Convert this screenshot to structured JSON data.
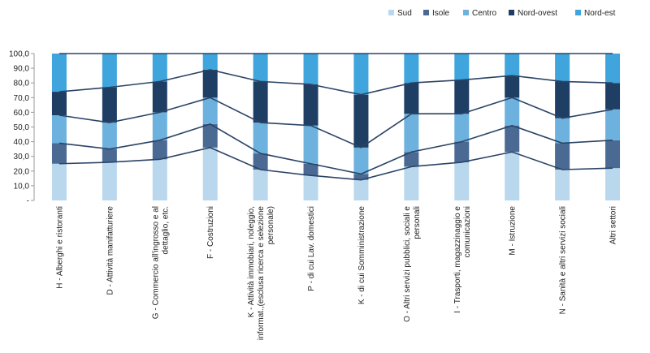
{
  "chart_data": {
    "type": "bar",
    "stacked": true,
    "percent": true,
    "categories": [
      "H - Alberghi e ristoranti",
      "D - Attività  manifatturiere",
      "G - Commercio all'ingrosso e al dettaglio, etc.",
      "F - Costruzioni",
      "K - Attività  immobiari, noleggio, informat.,(esclusa ricerca e selezione personale)",
      "P - di cui Lav. domestici",
      "K - di cui Somministrazione",
      "O - Altri servizi pubblici, sociali e personali",
      "I - Trasporti, magazzinaggio e comunicazioni",
      "M - Istruzione",
      "N - Sanità e altri servizi sociali",
      "Altri settori"
    ],
    "category_lines": [
      [
        "H - Alberghi e ristoranti"
      ],
      [
        "D - Attività  manifatturiere"
      ],
      [
        "G - Commercio all'ingrosso e al",
        "dettaglio, etc."
      ],
      [
        "F - Costruzioni"
      ],
      [
        "K - Attività  immobiari, noleggio,",
        "informat.,(esclusa ricerca e selezione",
        "personale)"
      ],
      [
        "P - di cui Lav. domestici"
      ],
      [
        "K - di cui Somministrazione"
      ],
      [
        "O - Altri servizi pubblici, sociali e",
        "personali"
      ],
      [
        "I - Trasporti, magazzinaggio e",
        "comunicazioni"
      ],
      [
        "M - Istruzione"
      ],
      [
        "N - Sanità  e altri servizi sociali"
      ],
      [
        "Altri settori"
      ]
    ],
    "series": [
      {
        "name": "Sud",
        "color": "#b9d8ee",
        "values": [
          25,
          26,
          28,
          36,
          21,
          17,
          14,
          23,
          26,
          33,
          21,
          22
        ]
      },
      {
        "name": "Isole",
        "color": "#4a6a93",
        "values": [
          14,
          9,
          13,
          16,
          11,
          8,
          4,
          10,
          14,
          18,
          18,
          19
        ]
      },
      {
        "name": "Centro",
        "color": "#6db2de",
        "values": [
          19,
          18,
          19,
          18,
          21,
          26,
          18,
          26,
          19,
          19,
          17,
          21
        ]
      },
      {
        "name": "Nord-ovest",
        "color": "#1f3e63",
        "values": [
          16,
          24,
          21,
          19,
          28,
          28,
          36,
          21,
          23,
          15,
          25,
          18
        ]
      },
      {
        "name": "Nord-est",
        "color": "#3fa5dc",
        "values": [
          26,
          23,
          19,
          11,
          19,
          21,
          28,
          20,
          18,
          15,
          19,
          20
        ]
      }
    ],
    "yticks": [
      "-",
      "10,0",
      "20,0",
      "30,0",
      "40,0",
      "50,0",
      "60,0",
      "70,0",
      "80,0",
      "90,0",
      "100,0"
    ],
    "ylim": [
      0,
      100
    ],
    "title": "",
    "xlabel": "",
    "ylabel": "",
    "legend_position": "top-right"
  }
}
